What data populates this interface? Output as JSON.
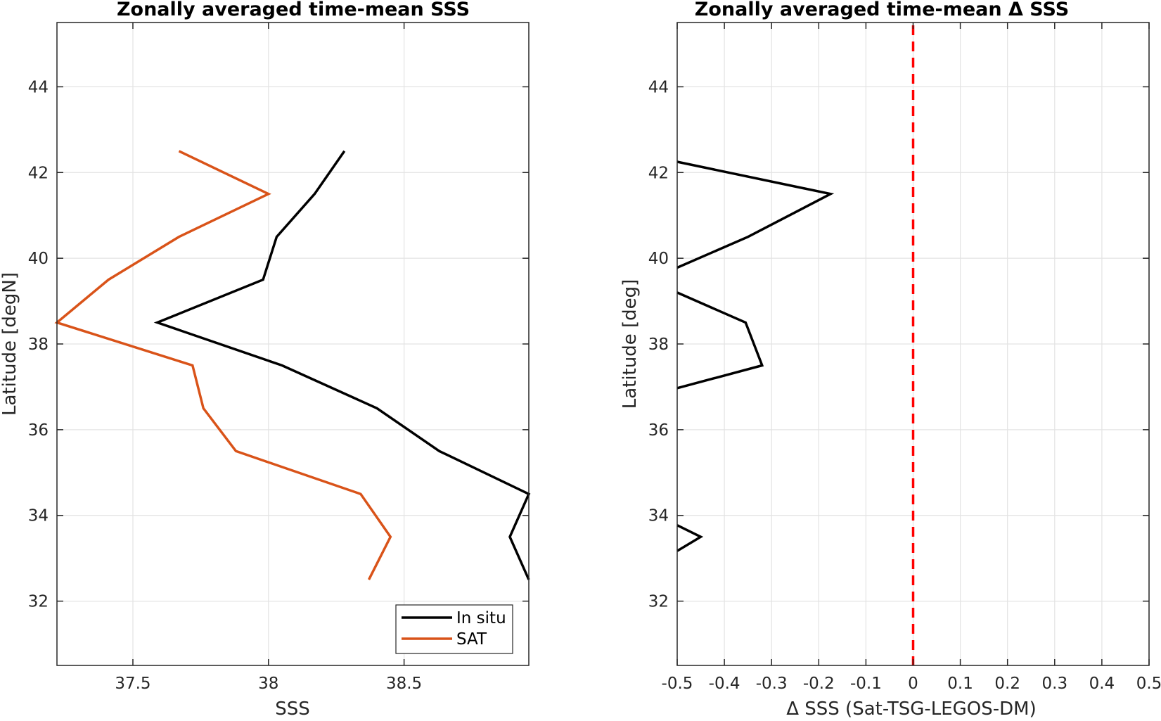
{
  "chart_data": [
    {
      "type": "line",
      "title": "Zonally averaged time-mean SSS",
      "xlabel": "SSS",
      "ylabel": "Latitude [degN]",
      "xlim": [
        37.22,
        38.96
      ],
      "ylim": [
        30.5,
        45.5
      ],
      "xticks": [
        37.5,
        38,
        38.5
      ],
      "xtick_labels": [
        "37.5",
        "38",
        "38.5"
      ],
      "yticks": [
        32,
        34,
        36,
        38,
        40,
        42,
        44
      ],
      "ytick_labels": [
        "32",
        "34",
        "36",
        "38",
        "40",
        "42",
        "44"
      ],
      "grid": true,
      "legend_position": "bottom-right",
      "series": [
        {
          "name": "In situ",
          "color": "#000000",
          "points": [
            [
              38.28,
              42.5
            ],
            [
              38.17,
              41.5
            ],
            [
              38.03,
              40.5
            ],
            [
              37.98,
              39.5
            ],
            [
              37.59,
              38.5
            ],
            [
              38.05,
              37.5
            ],
            [
              38.4,
              36.5
            ],
            [
              38.63,
              35.5
            ],
            [
              38.96,
              34.5
            ],
            [
              38.89,
              33.5
            ],
            [
              38.96,
              32.5
            ]
          ]
        },
        {
          "name": "SAT",
          "color": "#D95319",
          "points": [
            [
              37.67,
              42.5
            ],
            [
              38.0,
              41.5
            ],
            [
              37.67,
              40.5
            ],
            [
              37.41,
              39.5
            ],
            [
              37.22,
              38.5
            ],
            [
              37.72,
              37.5
            ],
            [
              37.76,
              36.5
            ],
            [
              37.88,
              35.5
            ],
            [
              38.34,
              34.5
            ],
            [
              38.45,
              33.5
            ],
            [
              38.37,
              32.5
            ]
          ]
        }
      ]
    },
    {
      "type": "line",
      "title": "Zonally averaged time-mean Δ SSS",
      "xlabel": "Δ SSS (Sat-TSG-LEGOS-DM)",
      "ylabel": "Latitude [deg]",
      "xlim": [
        -0.5,
        0.5
      ],
      "ylim": [
        30.5,
        45.5
      ],
      "xticks": [
        -0.5,
        -0.4,
        -0.3,
        -0.2,
        -0.1,
        0,
        0.1,
        0.2,
        0.3,
        0.4,
        0.5
      ],
      "xtick_labels": [
        "-0.5",
        "-0.4",
        "-0.3",
        "-0.2",
        "-0.1",
        "0",
        "0.1",
        "0.2",
        "0.3",
        "0.4",
        "0.5"
      ],
      "yticks": [
        32,
        34,
        36,
        38,
        40,
        42,
        44
      ],
      "ytick_labels": [
        "32",
        "34",
        "36",
        "38",
        "40",
        "42",
        "44"
      ],
      "grid": true,
      "reference_line": {
        "x": 0,
        "color": "#FF0000",
        "style": "dashed"
      },
      "series": [
        {
          "color": "#000000",
          "segments": [
            [
              [
                -0.5,
                42.25
              ],
              [
                -0.175,
                41.5
              ],
              [
                -0.35,
                40.5
              ],
              [
                -0.5,
                39.78
              ]
            ],
            [
              [
                -0.5,
                39.2
              ],
              [
                -0.355,
                38.5
              ],
              [
                -0.32,
                37.5
              ],
              [
                -0.5,
                36.97
              ]
            ],
            [
              [
                -0.5,
                33.77
              ],
              [
                -0.45,
                33.5
              ],
              [
                -0.5,
                33.17
              ]
            ]
          ]
        }
      ]
    }
  ]
}
